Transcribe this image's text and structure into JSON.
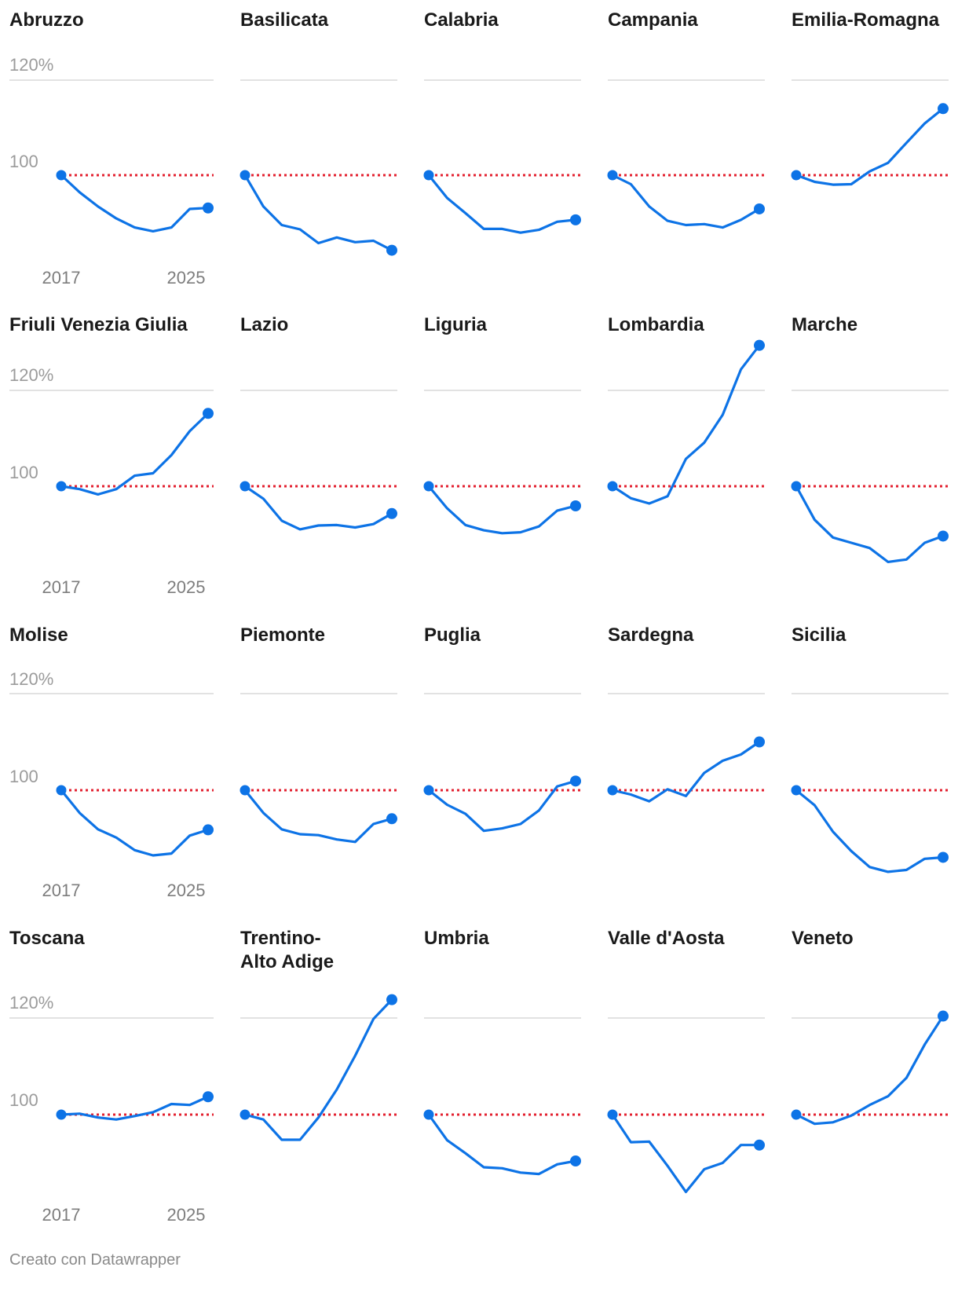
{
  "footer": "Creato con Datawrapper",
  "colors": {
    "line": "#0d73e6",
    "baseline": "#e3202f",
    "grid": "#d9d9d9"
  },
  "axis": {
    "y_ticks": [
      "120%",
      "100"
    ],
    "x_ticks": [
      "2017",
      "2025"
    ]
  },
  "chart_data": {
    "type": "line",
    "layout": "small-multiples",
    "x": [
      2017,
      2018,
      2019,
      2020,
      2021,
      2022,
      2023,
      2024,
      2025
    ],
    "ylim": [
      80,
      125
    ],
    "reference_line": 100,
    "series": [
      {
        "name": "Abruzzo",
        "values": [
          100,
          96.4,
          93.4,
          90.9,
          89.0,
          88.2,
          89.0,
          92.9,
          93.1
        ]
      },
      {
        "name": "Basilicata",
        "values": [
          100,
          93.4,
          89.5,
          88.6,
          85.7,
          86.9,
          85.9,
          86.2,
          84.2
        ]
      },
      {
        "name": "Calabria",
        "values": [
          100,
          95.2,
          92.0,
          88.7,
          88.7,
          87.9,
          88.5,
          90.2,
          90.6
        ]
      },
      {
        "name": "Campania",
        "values": [
          100,
          98.1,
          93.4,
          90.4,
          89.5,
          89.7,
          89.0,
          90.6,
          92.9
        ]
      },
      {
        "name": "Emilia-Romagna",
        "values": [
          100,
          98.6,
          98.0,
          98.1,
          100.8,
          102.6,
          106.8,
          110.9,
          114.0
        ]
      },
      {
        "name": "Friuli Venezia Giulia",
        "values": [
          100,
          99.4,
          98.3,
          99.4,
          102.2,
          102.7,
          106.5,
          111.5,
          115.2
        ]
      },
      {
        "name": "Lazio",
        "values": [
          100,
          97.4,
          92.8,
          91.0,
          91.8,
          91.9,
          91.4,
          92.1,
          94.3
        ]
      },
      {
        "name": "Liguria",
        "values": [
          100,
          95.4,
          91.9,
          90.8,
          90.2,
          90.4,
          91.6,
          94.9,
          95.9
        ]
      },
      {
        "name": "Lombardia",
        "values": [
          100,
          97.5,
          96.4,
          97.9,
          105.7,
          109.1,
          114.9,
          124.4,
          129.4
        ]
      },
      {
        "name": "Marche",
        "values": [
          100,
          93.0,
          89.3,
          88.2,
          87.1,
          84.2,
          84.7,
          88.2,
          89.6
        ]
      },
      {
        "name": "Molise",
        "values": [
          100,
          95.3,
          91.9,
          90.2,
          87.6,
          86.5,
          86.9,
          90.6,
          91.8
        ]
      },
      {
        "name": "Piemonte",
        "values": [
          100,
          95.3,
          91.9,
          90.9,
          90.7,
          89.8,
          89.3,
          93.0,
          94.1
        ]
      },
      {
        "name": "Puglia",
        "values": [
          100,
          97.0,
          95.1,
          91.6,
          92.1,
          93.0,
          95.8,
          100.8,
          101.9
        ]
      },
      {
        "name": "Sardegna",
        "values": [
          100,
          99.1,
          97.7,
          100.2,
          98.8,
          103.6,
          106.1,
          107.4,
          110.0
        ]
      },
      {
        "name": "Sicilia",
        "values": [
          100,
          96.9,
          91.4,
          87.4,
          84.1,
          83.1,
          83.5,
          85.8,
          86.1
        ]
      },
      {
        "name": "Toscana",
        "values": [
          100,
          100.2,
          99.4,
          99.0,
          99.7,
          100.5,
          102.2,
          102.0,
          103.7
        ]
      },
      {
        "name": "Trentino-Alto Adige",
        "values": [
          100,
          99.0,
          94.8,
          94.8,
          99.4,
          105.2,
          112.2,
          119.8,
          123.8
        ]
      },
      {
        "name": "Umbria",
        "values": [
          100,
          94.7,
          92.0,
          89.1,
          88.9,
          88.0,
          87.7,
          89.7,
          90.4
        ]
      },
      {
        "name": "Valle d'Aosta",
        "values": [
          100,
          94.3,
          94.4,
          89.4,
          84.0,
          88.7,
          90.0,
          93.7,
          93.7
        ]
      },
      {
        "name": "Veneto",
        "values": [
          100,
          98.1,
          98.4,
          99.8,
          102.0,
          103.8,
          107.6,
          114.5,
          120.4
        ]
      }
    ]
  }
}
